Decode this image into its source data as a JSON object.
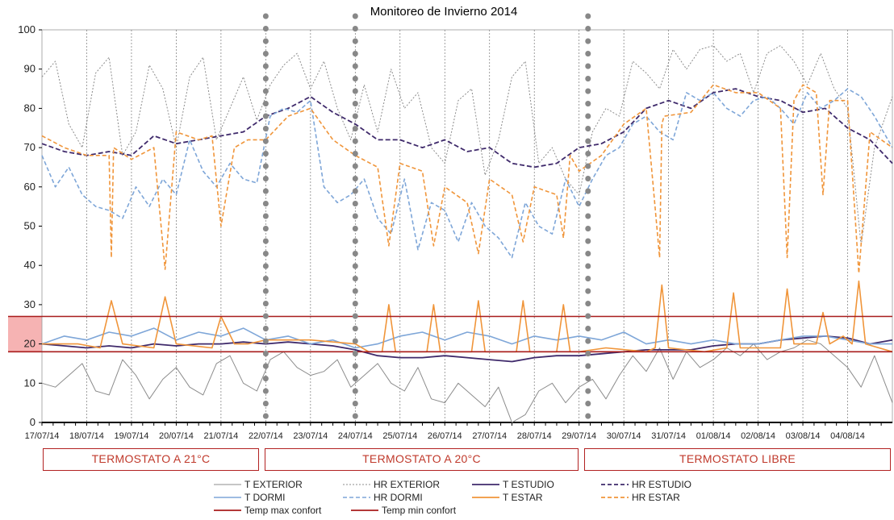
{
  "chart_data": {
    "type": "line",
    "title": "Monitoreo de Invierno 2014",
    "ylim": [
      0,
      100
    ],
    "yticks": [
      0,
      10,
      20,
      30,
      40,
      50,
      60,
      70,
      80,
      90,
      100
    ],
    "x_dates": [
      "17/07/14",
      "18/07/14",
      "19/07/14",
      "20/07/14",
      "21/07/14",
      "22/07/14",
      "23/07/14",
      "24/07/14",
      "25/07/14",
      "26/07/14",
      "27/07/14",
      "28/07/14",
      "29/07/14",
      "30/07/14",
      "31/07/14",
      "01/08/14",
      "02/08/14",
      "03/08/14",
      "04/08/14"
    ],
    "xlim": [
      0,
      19
    ],
    "grid": "vertical-dotted",
    "comfort_band": {
      "min": 18,
      "max": 27,
      "color": "#f4a6a6"
    },
    "threshold_lines": [
      {
        "name": "Temp max confort",
        "value": 27,
        "color": "#a81c1c"
      },
      {
        "name": "Temp min confort",
        "value": 18,
        "color": "#a81c1c"
      }
    ],
    "phase_dividers": [
      5,
      7,
      12.2
    ],
    "phases": [
      {
        "label": "TERMOSTATO A 21°C"
      },
      {
        "label": "TERMOSTATO A 20°C"
      },
      {
        "label": "TERMOSTATO LIBRE"
      }
    ],
    "series": [
      {
        "name": "T EXTERIOR",
        "color": "#8c8c8c",
        "dash": "solid",
        "width": 1,
        "x": [
          0,
          0.3,
          0.6,
          0.9,
          1.2,
          1.5,
          1.8,
          2.1,
          2.4,
          2.7,
          3.0,
          3.3,
          3.6,
          3.9,
          4.2,
          4.5,
          4.8,
          5.1,
          5.4,
          5.7,
          6.0,
          6.3,
          6.6,
          6.9,
          7.2,
          7.5,
          7.8,
          8.1,
          8.4,
          8.7,
          9.0,
          9.3,
          9.6,
          9.9,
          10.2,
          10.5,
          10.8,
          11.1,
          11.4,
          11.7,
          12.0,
          12.3,
          12.6,
          12.9,
          13.2,
          13.5,
          13.8,
          14.1,
          14.4,
          14.7,
          15.0,
          15.3,
          15.6,
          15.9,
          16.2,
          16.5,
          16.8,
          17.1,
          17.4,
          17.7,
          18.0,
          18.3,
          18.6,
          19.0
        ],
        "y": [
          10,
          9,
          12,
          15,
          8,
          7,
          16,
          12,
          6,
          11,
          14,
          9,
          7,
          15,
          17,
          10,
          8,
          16,
          18,
          14,
          12,
          13,
          16,
          9,
          12,
          15,
          10,
          8,
          14,
          6,
          5,
          10,
          7,
          4,
          9,
          0,
          2,
          8,
          10,
          5,
          9,
          11,
          6,
          12,
          17,
          13,
          19,
          11,
          18,
          14,
          16,
          19,
          17,
          20,
          16,
          18,
          19,
          21,
          20,
          17,
          14,
          9,
          17,
          5
        ]
      },
      {
        "name": "HR EXTERIOR",
        "color": "#8c8c8c",
        "dash": "2,2",
        "width": 1,
        "x": [
          0,
          0.3,
          0.6,
          0.9,
          1.2,
          1.5,
          1.8,
          2.1,
          2.4,
          2.7,
          3.0,
          3.3,
          3.6,
          3.9,
          4.2,
          4.5,
          4.8,
          5.1,
          5.4,
          5.7,
          6.0,
          6.3,
          6.6,
          6.9,
          7.2,
          7.5,
          7.8,
          8.1,
          8.4,
          8.7,
          9.0,
          9.3,
          9.6,
          9.9,
          10.2,
          10.5,
          10.8,
          11.1,
          11.4,
          11.7,
          12.0,
          12.3,
          12.6,
          12.9,
          13.2,
          13.5,
          13.8,
          14.1,
          14.4,
          14.7,
          15.0,
          15.3,
          15.6,
          15.9,
          16.2,
          16.5,
          16.8,
          17.1,
          17.4,
          17.7,
          18.0,
          18.3,
          18.6,
          19.0
        ],
        "y": [
          88,
          92,
          76,
          70,
          89,
          93,
          68,
          74,
          91,
          85,
          70,
          88,
          93,
          72,
          80,
          88,
          77,
          86,
          91,
          94,
          85,
          92,
          80,
          72,
          86,
          74,
          90,
          80,
          84,
          70,
          66,
          82,
          85,
          63,
          72,
          88,
          92,
          66,
          70,
          62,
          58,
          74,
          80,
          78,
          92,
          89,
          85,
          95,
          90,
          95,
          96,
          92,
          94,
          84,
          94,
          96,
          92,
          86,
          94,
          85,
          80,
          45,
          70,
          83
        ]
      },
      {
        "name": "T ESTUDIO",
        "color": "#3f2a6b",
        "dash": "solid",
        "width": 1.8,
        "x": [
          0,
          0.5,
          1.0,
          1.5,
          2.0,
          2.5,
          3.0,
          3.5,
          4.0,
          4.5,
          5.0,
          5.5,
          6.0,
          6.5,
          7.0,
          7.5,
          8.0,
          8.5,
          9.0,
          9.5,
          10.0,
          10.5,
          11.0,
          11.5,
          12.0,
          12.5,
          13.0,
          13.5,
          14.0,
          14.5,
          15.0,
          15.5,
          16.0,
          16.5,
          17.0,
          17.5,
          18.0,
          18.5,
          19.0
        ],
        "y": [
          20,
          19.5,
          19,
          19.5,
          19,
          20,
          19.5,
          20,
          20,
          20.5,
          20,
          20.5,
          20,
          19.5,
          18.5,
          17,
          16.5,
          16.5,
          17,
          16.5,
          16,
          15.5,
          16.5,
          17,
          17,
          17.5,
          18,
          18.5,
          18.5,
          18.5,
          19.5,
          20,
          20,
          21,
          21.5,
          22,
          21.5,
          20,
          21
        ]
      },
      {
        "name": "HR ESTUDIO",
        "color": "#3f2a6b",
        "dash": "6,3",
        "width": 1.8,
        "x": [
          0,
          0.5,
          1.0,
          1.5,
          2.0,
          2.5,
          3.0,
          3.5,
          4.0,
          4.5,
          5.0,
          5.5,
          6.0,
          6.5,
          7.0,
          7.5,
          8.0,
          8.5,
          9.0,
          9.5,
          10.0,
          10.5,
          11.0,
          11.5,
          12.0,
          12.5,
          13.0,
          13.5,
          14.0,
          14.5,
          15.0,
          15.5,
          16.0,
          16.5,
          17.0,
          17.5,
          18.0,
          18.5,
          19.0
        ],
        "y": [
          71,
          69,
          68,
          69,
          68,
          73,
          71,
          72,
          73,
          74,
          78,
          80,
          83,
          79,
          76,
          72,
          72,
          70,
          72,
          69,
          70,
          66,
          65,
          66,
          70,
          71,
          74,
          80,
          82,
          80,
          84,
          85,
          83,
          82,
          79,
          80,
          75,
          72,
          66
        ]
      },
      {
        "name": "T DORMI",
        "color": "#7ea6d8",
        "dash": "solid",
        "width": 1.6,
        "x": [
          0,
          0.5,
          1.0,
          1.5,
          2.0,
          2.5,
          3.0,
          3.5,
          4.0,
          4.5,
          5.0,
          5.5,
          6.0,
          6.5,
          7.0,
          7.5,
          8.0,
          8.5,
          9.0,
          9.5,
          10.0,
          10.5,
          11.0,
          11.5,
          12.0,
          12.5,
          13.0,
          13.5,
          14.0,
          14.5,
          15.0,
          15.5,
          16.0,
          16.5,
          17.0,
          17.5,
          18.0,
          18.5,
          19.0
        ],
        "y": [
          20,
          22,
          21,
          23,
          22,
          24,
          21,
          23,
          22,
          24,
          21,
          22,
          20,
          21,
          19,
          20,
          22,
          23,
          21,
          23,
          22,
          20,
          22,
          21,
          22,
          21,
          23,
          20,
          21,
          20,
          21,
          20,
          20,
          21,
          22,
          22,
          21,
          20,
          20
        ]
      },
      {
        "name": "HR DORMI",
        "color": "#7ea6d8",
        "dash": "5,3",
        "width": 1.6,
        "x": [
          0,
          0.3,
          0.6,
          0.9,
          1.2,
          1.5,
          1.8,
          2.1,
          2.4,
          2.7,
          3.0,
          3.3,
          3.6,
          3.9,
          4.2,
          4.5,
          4.8,
          5.1,
          5.4,
          5.7,
          6.0,
          6.3,
          6.6,
          6.9,
          7.2,
          7.5,
          7.8,
          8.1,
          8.4,
          8.7,
          9.0,
          9.3,
          9.6,
          9.9,
          10.2,
          10.5,
          10.8,
          11.1,
          11.4,
          11.7,
          12.0,
          12.3,
          12.6,
          12.9,
          13.2,
          13.5,
          13.8,
          14.1,
          14.4,
          14.7,
          15.0,
          15.3,
          15.6,
          15.9,
          16.2,
          16.5,
          16.8,
          17.1,
          17.4,
          17.7,
          18.0,
          18.3,
          18.6,
          19.0
        ],
        "y": [
          68,
          60,
          65,
          58,
          55,
          54,
          52,
          60,
          55,
          62,
          58,
          72,
          64,
          60,
          66,
          62,
          61,
          78,
          80,
          79,
          82,
          60,
          56,
          58,
          62,
          52,
          48,
          62,
          44,
          56,
          54,
          46,
          56,
          50,
          47,
          42,
          56,
          50,
          48,
          62,
          55,
          62,
          68,
          70,
          76,
          78,
          74,
          72,
          84,
          82,
          84,
          80,
          78,
          82,
          83,
          80,
          76,
          84,
          80,
          82,
          85,
          83,
          78,
          70
        ]
      },
      {
        "name": "T ESTAR",
        "color": "#f0953a",
        "dash": "solid",
        "width": 1.6,
        "x": [
          0,
          0.8,
          1.3,
          1.55,
          1.8,
          2.5,
          2.75,
          3.0,
          3.8,
          4.0,
          4.3,
          4.6,
          5.0,
          6.0,
          7.0,
          7.3,
          7.6,
          7.75,
          7.9,
          8.6,
          8.75,
          8.9,
          9.6,
          9.75,
          9.9,
          10.6,
          10.75,
          10.9,
          11.5,
          11.65,
          11.8,
          12.0,
          12.6,
          13.5,
          13.7,
          13.85,
          14.0,
          14.8,
          15.3,
          15.45,
          15.6,
          16.5,
          16.65,
          16.8,
          17.3,
          17.45,
          17.6,
          17.9,
          18.1,
          18.25,
          18.4,
          19.0
        ],
        "y": [
          20,
          20,
          19,
          31,
          20,
          19,
          32,
          20,
          19,
          27,
          20,
          20,
          21,
          21,
          20,
          18,
          18,
          30,
          18,
          18,
          30,
          18,
          18,
          31,
          18,
          18,
          31,
          18,
          18,
          30,
          18,
          18,
          19,
          18,
          19,
          35,
          19,
          18,
          19,
          33,
          19,
          19,
          34,
          20,
          20,
          28,
          20,
          22,
          20,
          36,
          20,
          18
        ]
      },
      {
        "name": "HR ESTAR",
        "color": "#f0953a",
        "dash": "5,3",
        "width": 1.6,
        "x": [
          0,
          0.5,
          1.0,
          1.5,
          1.55,
          1.6,
          2.0,
          2.5,
          2.75,
          3.0,
          3.5,
          3.8,
          4.0,
          4.3,
          4.6,
          5.0,
          5.5,
          6.0,
          6.5,
          7.0,
          7.5,
          7.75,
          8.0,
          8.5,
          8.75,
          9.0,
          9.5,
          9.75,
          10.0,
          10.5,
          10.75,
          11.0,
          11.5,
          11.65,
          11.8,
          12.0,
          12.5,
          13.0,
          13.5,
          13.8,
          13.85,
          13.9,
          14.5,
          15.0,
          15.5,
          16.0,
          16.5,
          16.65,
          16.8,
          17.0,
          17.3,
          17.45,
          17.6,
          18.0,
          18.25,
          18.5,
          19.0
        ],
        "y": [
          73,
          70,
          68,
          68,
          42,
          70,
          67,
          70,
          39,
          74,
          72,
          73,
          50,
          70,
          72,
          72,
          78,
          80,
          72,
          68,
          65,
          45,
          66,
          64,
          45,
          60,
          56,
          43,
          62,
          58,
          46,
          60,
          58,
          47,
          68,
          64,
          68,
          76,
          80,
          42,
          76,
          78,
          79,
          86,
          84,
          84,
          80,
          42,
          82,
          86,
          84,
          58,
          82,
          82,
          38,
          74,
          70
        ]
      }
    ],
    "legend": [
      {
        "label": "T EXTERIOR"
      },
      {
        "label": "HR EXTERIOR"
      },
      {
        "label": "T ESTUDIO"
      },
      {
        "label": "HR ESTUDIO"
      },
      {
        "label": "T DORMI"
      },
      {
        "label": "HR DORMI"
      },
      {
        "label": "T ESTAR"
      },
      {
        "label": "HR ESTAR"
      },
      {
        "label": "Temp max confort"
      },
      {
        "label": "Temp min confort"
      }
    ]
  }
}
